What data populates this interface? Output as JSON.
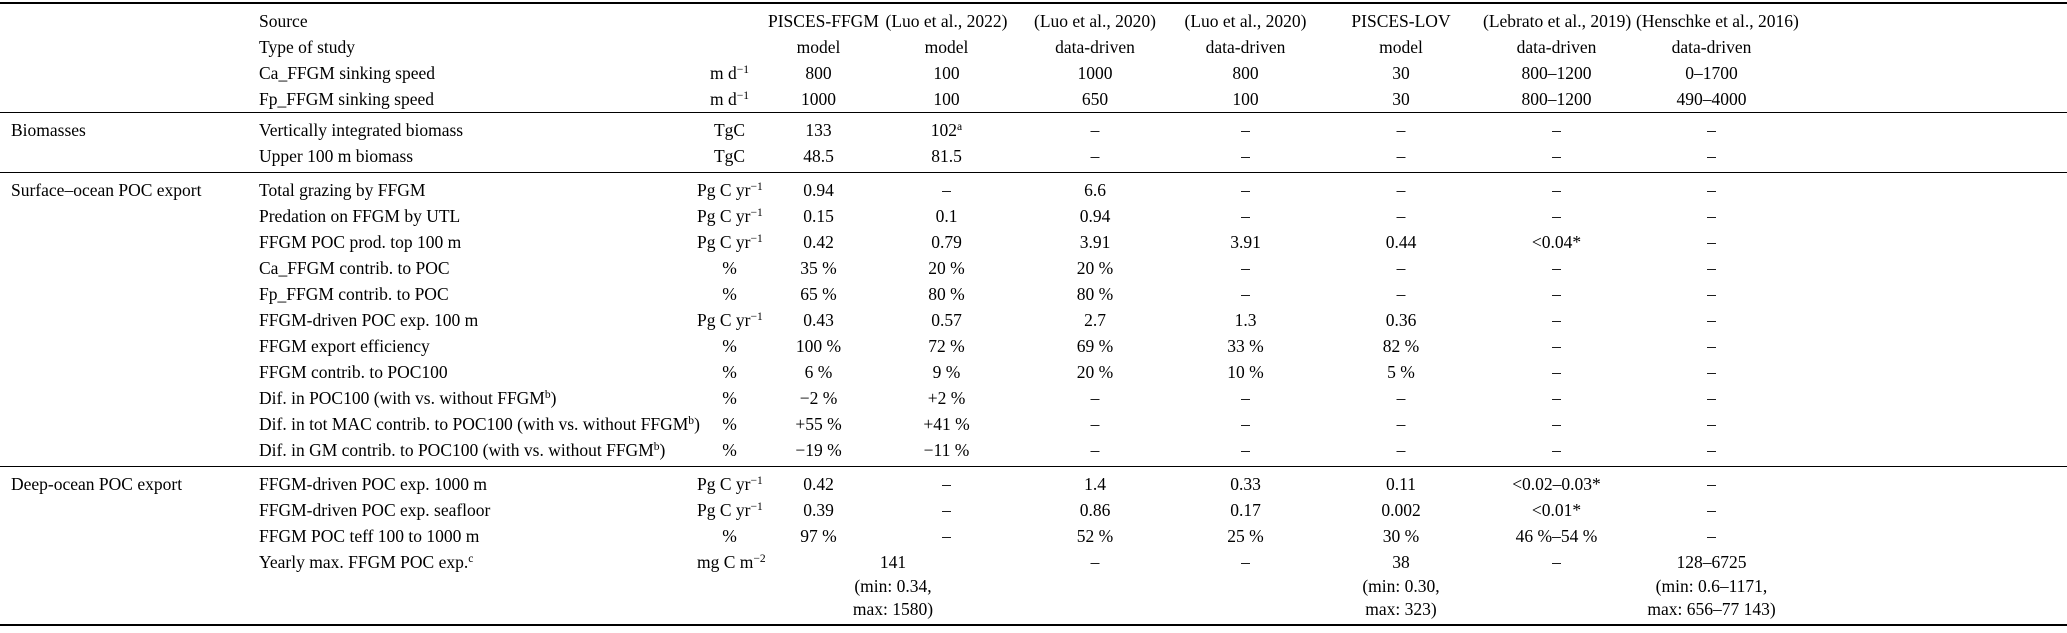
{
  "table": {
    "header_rows": [
      {
        "label": "Source",
        "unit": "",
        "values": [
          "PISCES-FFGM",
          "(Luo et al., 2022)",
          "(Luo et al., 2020)",
          "(Luo et al., 2020)",
          "PISCES-LOV",
          "(Lebrato et al., 2019)",
          "(Henschke et al., 2016)"
        ]
      },
      {
        "label": "Type of study",
        "unit": "",
        "values": [
          "model",
          "model",
          "data-driven",
          "data-driven",
          "model",
          "data-driven",
          "data-driven"
        ]
      },
      {
        "label": "Ca_FFGM sinking speed",
        "unit": "m d^{−1}",
        "values": [
          "800",
          "100",
          "1000",
          "800",
          "30",
          "800–1200",
          "0–1700"
        ]
      },
      {
        "label": "Fp_FFGM sinking speed",
        "unit": "m d^{−1}",
        "values": [
          "1000",
          "100",
          "650",
          "100",
          "30",
          "800–1200",
          "490–4000"
        ]
      }
    ],
    "sections": [
      {
        "title": "Biomasses",
        "rows": [
          {
            "label": "Vertically integrated biomass",
            "unit": "TgC",
            "values": [
              "133",
              "102^{a}",
              "–",
              "–",
              "–",
              "–",
              "–"
            ]
          },
          {
            "label": "Upper 100 m biomass",
            "unit": "TgC",
            "values": [
              "48.5",
              "81.5",
              "–",
              "–",
              "–",
              "–",
              "–"
            ]
          }
        ]
      },
      {
        "title": "Surface–ocean POC export",
        "rows": [
          {
            "label": "Total grazing by FFGM",
            "unit": "Pg C yr^{−1}",
            "values": [
              "0.94",
              "–",
              "6.6",
              "–",
              "–",
              "–",
              "–"
            ]
          },
          {
            "label": "Predation on FFGM by UTL",
            "unit": "Pg C yr^{−1}",
            "values": [
              "0.15",
              "0.1",
              "0.94",
              "–",
              "–",
              "–",
              "–"
            ]
          },
          {
            "label": "FFGM POC prod. top 100 m",
            "unit": "Pg C yr^{−1}",
            "values": [
              "0.42",
              "0.79",
              "3.91",
              "3.91",
              "0.44",
              "<0.04*",
              "–"
            ]
          },
          {
            "label": "Ca_FFGM contrib. to POC",
            "unit": "%",
            "values": [
              "35 %",
              "20 %",
              "20 %",
              "–",
              "–",
              "–",
              "–"
            ]
          },
          {
            "label": "Fp_FFGM contrib. to POC",
            "unit": "%",
            "values": [
              "65 %",
              "80 %",
              "80 %",
              "–",
              "–",
              "–",
              "–"
            ]
          },
          {
            "label": "FFGM-driven POC exp. 100 m",
            "unit": "Pg C yr^{−1}",
            "values": [
              "0.43",
              "0.57",
              "2.7",
              "1.3",
              "0.36",
              "–",
              "–"
            ]
          },
          {
            "label": "FFGM export efficiency",
            "unit": "%",
            "values": [
              "100 %",
              "72 %",
              "69 %",
              "33 %",
              "82 %",
              "–",
              "–"
            ]
          },
          {
            "label": "FFGM contrib. to POC100",
            "unit": "%",
            "values": [
              "6 %",
              "9 %",
              "20 %",
              "10 %",
              "5 %",
              "–",
              "–"
            ]
          },
          {
            "label": "Dif. in POC100 (with vs. without FFGM^{b})",
            "unit": "%",
            "values": [
              "−2 %",
              "+2 %",
              "–",
              "–",
              "–",
              "–",
              "–"
            ]
          },
          {
            "label": "Dif. in tot MAC contrib. to POC100 (with vs. without FFGM^{b})",
            "unit": "%",
            "values": [
              "+55 %",
              "+41 %",
              "–",
              "–",
              "–",
              "–",
              "–"
            ]
          },
          {
            "label": "Dif. in GM contrib. to POC100 (with vs. without FFGM^{b})",
            "unit": "%",
            "values": [
              "−19 %",
              "−11 %",
              "–",
              "–",
              "–",
              "–",
              "–"
            ]
          }
        ]
      },
      {
        "title": "Deep-ocean POC export",
        "rows": [
          {
            "label": "FFGM-driven POC exp. 1000 m",
            "unit": "Pg C yr^{−1}",
            "values": [
              "0.42",
              "–",
              "1.4",
              "0.33",
              "0.11",
              "<0.02–0.03*",
              "–"
            ]
          },
          {
            "label": "FFGM-driven POC exp. seafloor",
            "unit": "Pg C yr^{−1}",
            "values": [
              "0.39",
              "–",
              "0.86",
              "0.17",
              "0.002",
              "<0.01*",
              "–"
            ]
          },
          {
            "label": "FFGM POC teff 100 to 1000 m",
            "unit": "%",
            "values": [
              "97 %",
              "–",
              "52 %",
              "25 %",
              "30 %",
              "46 %–54 %",
              "–"
            ]
          },
          {
            "label": "Yearly max. FFGM POC exp.^{c}",
            "unit": "mg C m^{−2}",
            "values": [
              {
                "span": 2,
                "lines": [
                  "141",
                  "(min: 0.34,",
                  "max: 1580)"
                ]
              },
              "–",
              "–",
              {
                "lines": [
                  "38",
                  "(min: 0.30,",
                  "max: 323)"
                ]
              },
              "–",
              {
                "lines": [
                  "128–6725",
                  "(min: 0.6–1171,",
                  "max: 656–77 143)"
                ]
              }
            ]
          }
        ]
      }
    ]
  }
}
